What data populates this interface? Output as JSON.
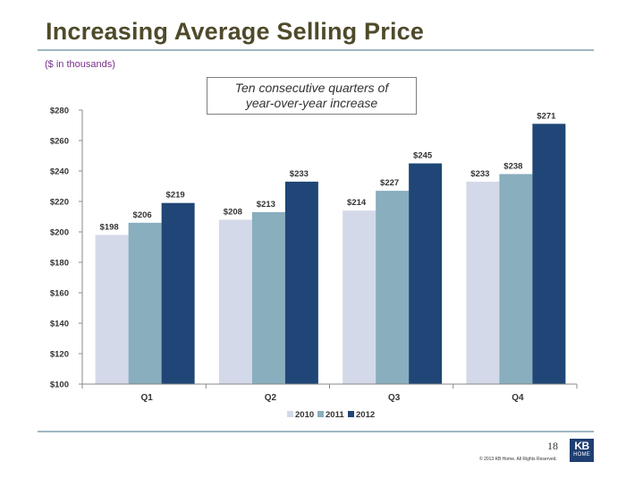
{
  "slide": {
    "title": "Increasing Average Selling Price",
    "subtitle": "($ in thousands)",
    "callout_line1": "Ten consecutive quarters of",
    "callout_line2": "year-over-year increase",
    "page_number": "18",
    "copyright": "© 2013 KB Home. All Rights Reserved.",
    "logo_line1": "KB",
    "logo_line2": "HOME"
  },
  "colors": {
    "title": "#4f4a2a",
    "subtitle": "#7a2f8a",
    "rule": "#9fb7c2",
    "series_2010": "#d3d9e8",
    "series_2011": "#89aebe",
    "series_2012": "#1f4676"
  },
  "chart_data": {
    "type": "bar",
    "categories": [
      "Q1",
      "Q2",
      "Q3",
      "Q4"
    ],
    "series": [
      {
        "name": "2010",
        "values": [
          198,
          208,
          214,
          233
        ],
        "labels": [
          "$198",
          "$208",
          "$214",
          "$233"
        ]
      },
      {
        "name": "2011",
        "values": [
          206,
          213,
          227,
          238
        ],
        "labels": [
          "$206",
          "$213",
          "$227",
          "$238"
        ]
      },
      {
        "name": "2012",
        "values": [
          219,
          233,
          245,
          271
        ],
        "labels": [
          "$219",
          "$233",
          "$245",
          "$271"
        ]
      }
    ],
    "ylim": [
      100,
      280
    ],
    "yticks": [
      100,
      120,
      140,
      160,
      180,
      200,
      220,
      240,
      260,
      280
    ],
    "ytick_labels": [
      "$100",
      "$120",
      "$140",
      "$160",
      "$180",
      "$200",
      "$220",
      "$240",
      "$260",
      "$280"
    ],
    "legend_position": "bottom-center",
    "grid": false
  }
}
